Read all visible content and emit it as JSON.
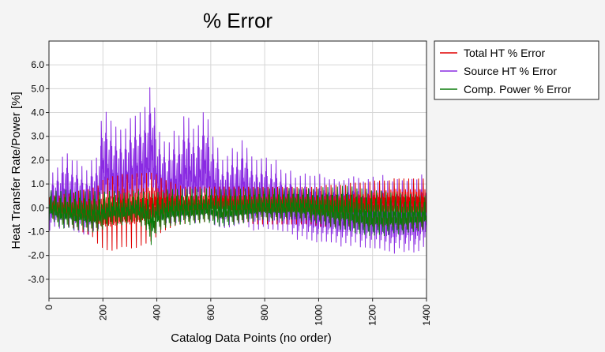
{
  "chart_data": {
    "type": "line",
    "title": "% Error",
    "xlabel": "Catalog Data Points (no order)",
    "ylabel": "Heat Transfer Rate/Power [%]",
    "xlim": [
      0,
      1400
    ],
    "ylim": [
      -3.8,
      7.0
    ],
    "x_ticks": [
      0,
      200,
      400,
      600,
      800,
      1000,
      1200,
      1400
    ],
    "y_ticks": [
      -3.0,
      -2.0,
      -1.0,
      0.0,
      1.0,
      2.0,
      3.0,
      4.0,
      5.0,
      6.0
    ],
    "x_tick_labels": [
      "0",
      "200",
      "400",
      "600",
      "800",
      "1000",
      "1200",
      "1400"
    ],
    "y_tick_labels": [
      "-3.0",
      "-2.0",
      "-1.0",
      "0.0",
      "1.0",
      "2.0",
      "3.0",
      "4.0",
      "5.0",
      "6.0"
    ],
    "grid": true,
    "legend_position": "right-top-outside",
    "series": [
      {
        "name": "Total HT % Error",
        "color": "#e00000",
        "x": [
          0,
          20,
          40,
          60,
          80,
          100,
          120,
          140,
          160,
          180,
          200,
          220,
          240,
          260,
          280,
          300,
          320,
          340,
          360,
          380,
          400,
          420,
          440,
          460,
          480,
          500,
          520,
          540,
          560,
          580,
          600,
          620,
          640,
          660,
          680,
          700,
          720,
          740,
          760,
          780,
          800,
          820,
          840,
          860,
          880,
          900,
          920,
          940,
          960,
          980,
          1000,
          1020,
          1040,
          1060,
          1080,
          1100,
          1120,
          1140,
          1160,
          1180,
          1200,
          1220,
          1240,
          1260,
          1280,
          1300,
          1320,
          1340,
          1360,
          1380,
          1400
        ],
        "min": [
          -0.4,
          -0.5,
          -0.6,
          -0.7,
          -0.8,
          -0.9,
          -1.0,
          -1.1,
          -1.2,
          -1.5,
          -1.7,
          -1.8,
          -1.8,
          -1.7,
          -1.6,
          -1.7,
          -1.7,
          -1.6,
          -1.5,
          -1.4,
          -1.2,
          -1.0,
          -0.9,
          -0.8,
          -0.7,
          -0.7,
          -0.6,
          -0.6,
          -0.6,
          -0.6,
          -0.5,
          -0.5,
          -0.5,
          -0.5,
          -0.6,
          -0.6,
          -0.6,
          -0.6,
          -0.7,
          -0.7,
          -0.7,
          -0.7,
          -0.7,
          -0.7,
          -0.7,
          -0.7,
          -0.7,
          -0.7,
          -0.7,
          -0.7,
          -0.8,
          -0.8,
          -0.8,
          -0.8,
          -0.8,
          -0.8,
          -0.8,
          -0.8,
          -0.8,
          -0.8,
          -0.8,
          -0.8,
          -0.8,
          -0.8,
          -0.8,
          -0.9,
          -0.9,
          -0.9,
          -0.9,
          -0.9,
          -0.9
        ],
        "max": [
          0.5,
          0.6,
          0.6,
          0.7,
          0.7,
          0.8,
          0.9,
          0.9,
          1.0,
          1.1,
          1.4,
          1.5,
          1.6,
          1.6,
          1.7,
          1.6,
          1.7,
          1.7,
          1.7,
          1.7,
          1.6,
          1.4,
          1.3,
          1.2,
          1.1,
          1.0,
          1.0,
          1.0,
          1.0,
          1.0,
          1.0,
          1.0,
          1.0,
          1.0,
          1.0,
          1.0,
          1.0,
          1.0,
          1.0,
          1.0,
          1.0,
          1.0,
          1.0,
          1.0,
          1.0,
          1.0,
          1.0,
          1.0,
          1.0,
          1.0,
          1.0,
          1.1,
          1.1,
          1.1,
          1.1,
          1.1,
          1.2,
          1.2,
          1.2,
          1.2,
          1.3,
          1.3,
          1.3,
          1.3,
          1.4,
          1.4,
          1.4,
          1.4,
          1.4,
          1.4,
          1.4
        ]
      },
      {
        "name": "Source HT % Error",
        "color": "#8a2be2",
        "x": [
          0,
          20,
          40,
          60,
          80,
          100,
          120,
          140,
          160,
          180,
          200,
          220,
          240,
          260,
          280,
          300,
          320,
          340,
          360,
          380,
          400,
          420,
          440,
          460,
          480,
          500,
          520,
          540,
          560,
          580,
          600,
          620,
          640,
          660,
          680,
          700,
          720,
          740,
          760,
          780,
          800,
          820,
          840,
          860,
          880,
          900,
          920,
          940,
          960,
          980,
          1000,
          1020,
          1040,
          1060,
          1080,
          1100,
          1120,
          1140,
          1160,
          1180,
          1200,
          1220,
          1240,
          1260,
          1280,
          1300,
          1320,
          1340,
          1360,
          1380,
          1400
        ],
        "min": [
          -1.8,
          -1.6,
          -1.8,
          -2.0,
          -1.8,
          -2.1,
          -2.0,
          -2.2,
          -2.0,
          -2.1,
          -1.8,
          -2.0,
          -2.0,
          -2.0,
          -1.9,
          -2.0,
          -1.8,
          -1.9,
          -2.0,
          -1.7,
          -1.8,
          -1.7,
          -1.8,
          -2.0,
          -1.9,
          -2.0,
          -1.8,
          -2.0,
          -1.9,
          -1.9,
          -1.9,
          -2.0,
          -1.8,
          -1.9,
          -1.9,
          -1.8,
          -1.8,
          -1.9,
          -2.0,
          -1.9,
          -1.8,
          -1.9,
          -1.9,
          -1.9,
          -1.8,
          -2.0,
          -2.2,
          -2.1,
          -2.3,
          -2.3,
          -2.5,
          -2.3,
          -2.4,
          -2.3,
          -2.6,
          -2.4,
          -2.6,
          -2.4,
          -2.7,
          -2.6,
          -2.8,
          -2.6,
          -2.9,
          -2.8,
          -3.0,
          -2.7,
          -2.9,
          -2.8,
          -3.0,
          -2.8,
          -2.5
        ],
        "max": [
          1.7,
          1.9,
          2.2,
          3.0,
          2.4,
          2.5,
          2.2,
          2.0,
          2.5,
          2.6,
          5.0,
          4.5,
          4.1,
          3.9,
          3.8,
          4.4,
          4.5,
          4.7,
          5.0,
          6.2,
          4.0,
          3.5,
          3.0,
          3.9,
          3.5,
          4.5,
          4.4,
          3.8,
          4.2,
          5.0,
          3.7,
          3.3,
          2.4,
          2.6,
          3.0,
          2.8,
          3.5,
          2.8,
          2.5,
          2.4,
          2.7,
          2.2,
          2.5,
          2.0,
          1.8,
          2.0,
          1.5,
          1.9,
          1.8,
          1.7,
          1.9,
          1.7,
          1.6,
          1.6,
          1.5,
          1.6,
          1.7,
          1.8,
          1.5,
          1.6,
          1.8,
          1.5,
          1.9,
          1.5,
          1.6,
          1.7,
          1.5,
          1.7,
          1.6,
          1.9,
          1.6
        ]
      },
      {
        "name": "Comp. Power % Error",
        "color": "#0a7a0a",
        "x": [
          0,
          20,
          40,
          60,
          80,
          100,
          120,
          140,
          160,
          180,
          200,
          220,
          240,
          260,
          280,
          300,
          320,
          340,
          360,
          380,
          400,
          420,
          440,
          460,
          480,
          500,
          520,
          540,
          560,
          580,
          600,
          620,
          640,
          660,
          680,
          700,
          720,
          740,
          760,
          780,
          800,
          820,
          840,
          860,
          880,
          900,
          920,
          940,
          960,
          980,
          1000,
          1020,
          1040,
          1060,
          1080,
          1100,
          1120,
          1140,
          1160,
          1180,
          1200,
          1220,
          1240,
          1260,
          1280,
          1300,
          1320,
          1340,
          1360,
          1380,
          1400
        ],
        "min": [
          -1.0,
          -1.1,
          -1.4,
          -1.5,
          -1.4,
          -1.6,
          -1.5,
          -1.6,
          -1.7,
          -1.6,
          -1.5,
          -1.3,
          -1.2,
          -1.3,
          -1.2,
          -1.1,
          -1.0,
          -1.3,
          -1.5,
          -2.4,
          -1.6,
          -1.5,
          -1.4,
          -1.3,
          -1.3,
          -1.2,
          -1.3,
          -1.2,
          -1.2,
          -1.1,
          -1.2,
          -1.3,
          -1.4,
          -1.3,
          -1.3,
          -1.2,
          -1.2,
          -1.1,
          -1.1,
          -1.0,
          -1.0,
          -1.1,
          -1.0,
          -1.1,
          -1.0,
          -1.0,
          -1.0,
          -1.1,
          -1.0,
          -1.2,
          -1.2,
          -1.3,
          -1.4,
          -1.5,
          -1.6,
          -1.6,
          -1.7,
          -1.8,
          -1.8,
          -1.9,
          -1.9,
          -1.8,
          -1.9,
          -1.8,
          -1.7,
          -1.8,
          -1.7,
          -1.6,
          -1.6,
          -1.5,
          -1.4
        ],
        "max": [
          1.0,
          1.0,
          1.0,
          1.1,
          1.1,
          1.0,
          1.1,
          1.0,
          1.1,
          1.0,
          1.0,
          1.0,
          1.0,
          1.0,
          0.9,
          0.9,
          1.0,
          1.0,
          1.0,
          1.0,
          1.0,
          1.0,
          1.1,
          1.1,
          1.1,
          1.1,
          1.1,
          1.1,
          1.1,
          1.1,
          1.1,
          1.1,
          1.1,
          1.1,
          1.1,
          1.1,
          1.1,
          1.1,
          1.1,
          1.1,
          1.1,
          1.1,
          1.1,
          1.1,
          1.1,
          1.1,
          1.1,
          1.1,
          1.1,
          1.1,
          1.1,
          1.2,
          1.2,
          1.2,
          1.3,
          1.3,
          1.3,
          1.2,
          1.2,
          1.2,
          1.1,
          1.1,
          1.1,
          1.0,
          1.0,
          1.0,
          0.9,
          0.9,
          0.9,
          0.8,
          0.8
        ]
      }
    ]
  }
}
